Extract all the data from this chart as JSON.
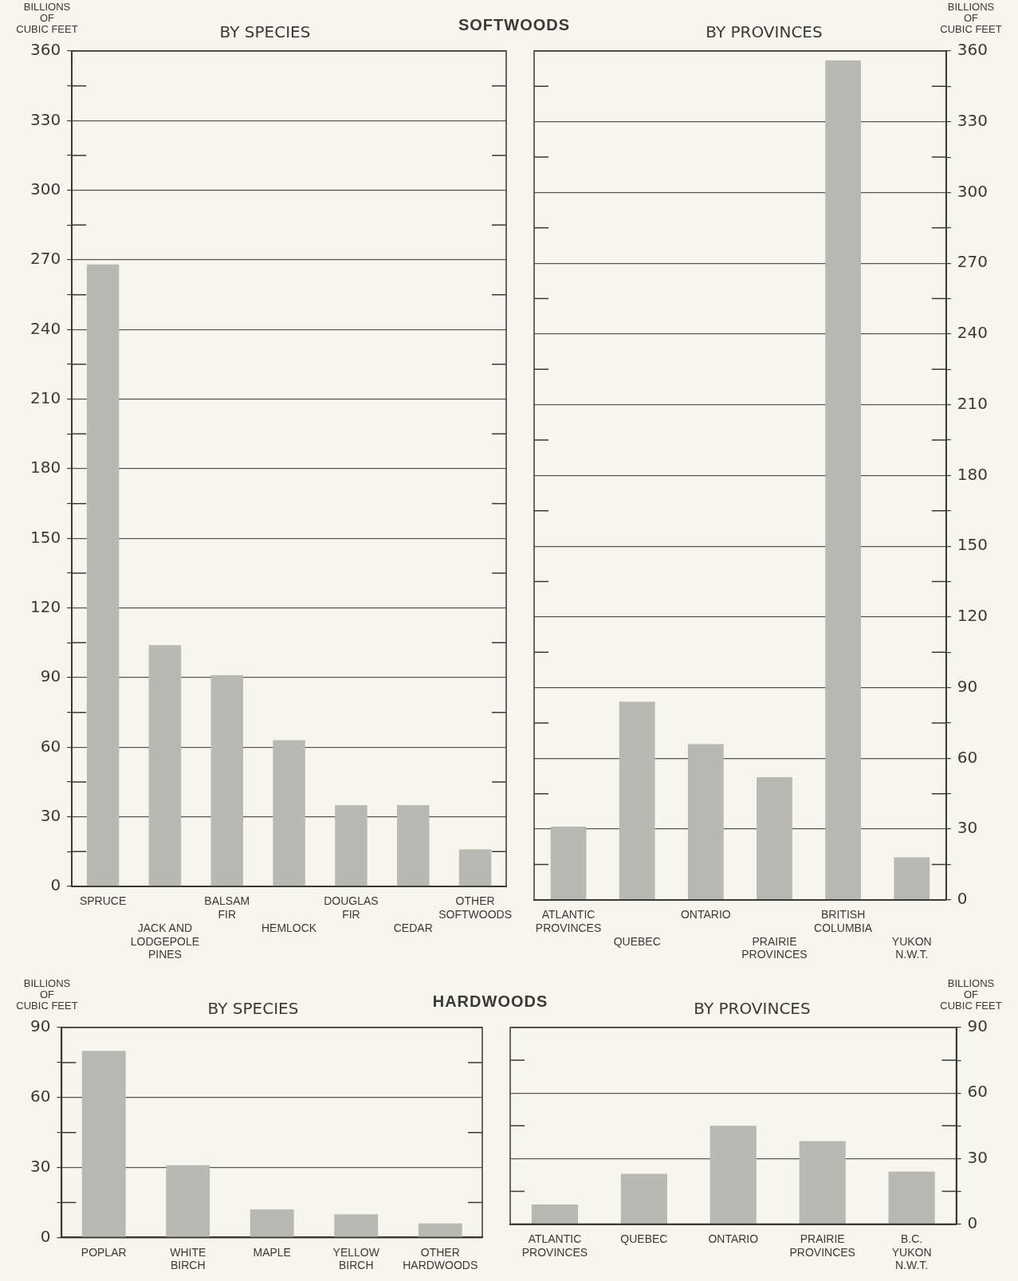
{
  "chart_data": [
    {
      "type": "bar",
      "title": "BY SPECIES",
      "ylabel": "BILLIONS\nOF\nCUBIC FEET",
      "annotations": [
        "SOFTWOODS"
      ],
      "categories": [
        "SPRUCE",
        "JACK AND\nLODGEPOLE\nPINES",
        "BALSAM\nFIR",
        "HEMLOCK",
        "DOUGLAS\nFIR",
        "CEDAR",
        "OTHER\nSOFTWOODS"
      ],
      "series": [
        {
          "color": "#b9b9b4",
          "values": [
            268,
            104,
            91,
            63,
            35,
            35,
            16
          ]
        }
      ],
      "ylim": [
        0,
        360
      ],
      "yticks": [
        0,
        {
          "value": 15,
          "label": null
        },
        30,
        {
          "value": 45,
          "label": null
        },
        60,
        {
          "value": 75,
          "label": null
        },
        90,
        {
          "value": 105,
          "label": null
        },
        120,
        {
          "value": 135,
          "label": null
        },
        150,
        {
          "value": 165,
          "label": null
        },
        180,
        {
          "value": 195,
          "label": null
        },
        210,
        {
          "value": 225,
          "label": null
        },
        240,
        {
          "value": 255,
          "label": null
        },
        270,
        {
          "value": 285,
          "label": null
        },
        300,
        {
          "value": 315,
          "label": null
        },
        330,
        {
          "value": 345,
          "label": null
        },
        360
      ],
      "grid": "y",
      "legend": false
    },
    {
      "type": "bar",
      "title": "BY PROVINCES",
      "y2label": "BILLIONS\nOF\nCUBIC FEET",
      "categories": [
        "ATLANTIC\nPROVINCES",
        "QUEBEC",
        "ONTARIO",
        "PRAIRIE\nPROVINCES",
        "BRITISH\nCOLUMBIA",
        "YUKON\nN.W.T."
      ],
      "series": [
        {
          "color": "#b9b9b4",
          "axis": "y2",
          "values": [
            31,
            84,
            66,
            52,
            356,
            18
          ]
        }
      ],
      "y2lim": [
        0,
        360
      ],
      "y2ticks": [
        0,
        {
          "value": 15,
          "label": null
        },
        30,
        {
          "value": 45,
          "label": null
        },
        60,
        {
          "value": 75,
          "label": null
        },
        90,
        {
          "value": 105,
          "label": null
        },
        120,
        {
          "value": 135,
          "label": null
        },
        150,
        {
          "value": 165,
          "label": null
        },
        180,
        {
          "value": 195,
          "label": null
        },
        210,
        {
          "value": 225,
          "label": null
        },
        240,
        {
          "value": 255,
          "label": null
        },
        270,
        {
          "value": 285,
          "label": null
        },
        300,
        {
          "value": 315,
          "label": null
        },
        330,
        {
          "value": 345,
          "label": null
        },
        360
      ],
      "grid": "y",
      "legend": false
    },
    {
      "type": "bar",
      "title": "BY SPECIES",
      "ylabel": "BILLIONS\nOF\nCUBIC FEET",
      "annotations": [
        "HARDWOODS"
      ],
      "categories": [
        "POPLAR",
        "WHITE\nBIRCH",
        "MAPLE",
        "YELLOW\nBIRCH",
        "OTHER\nHARDWOODS"
      ],
      "series": [
        {
          "color": "#b9b9b4",
          "values": [
            80,
            31,
            12,
            10,
            6
          ]
        }
      ],
      "ylim": [
        0,
        90
      ],
      "yticks": [
        0,
        {
          "value": 15,
          "label": null
        },
        30,
        {
          "value": 45,
          "label": null
        },
        60,
        {
          "value": 75,
          "label": null
        },
        90
      ],
      "grid": "y",
      "legend": false
    },
    {
      "type": "bar",
      "title": "BY PROVINCES",
      "y2label": "BILLIONS\nOF\nCUBIC FEET",
      "categories": [
        "ATLANTIC\nPROVINCES",
        "QUEBEC",
        "ONTARIO",
        "PRAIRIE\nPROVINCES",
        "B.C.\nYUKON\nN.W.T."
      ],
      "series": [
        {
          "color": "#b9b9b4",
          "axis": "y2",
          "values": [
            9,
            23,
            45,
            38,
            24
          ]
        }
      ],
      "y2lim": [
        0,
        90
      ],
      "y2ticks": [
        0,
        {
          "value": 15,
          "label": null
        },
        30,
        {
          "value": 45,
          "label": null
        },
        60,
        {
          "value": 75,
          "label": null
        },
        90
      ],
      "grid": "y",
      "legend": false
    }
  ]
}
